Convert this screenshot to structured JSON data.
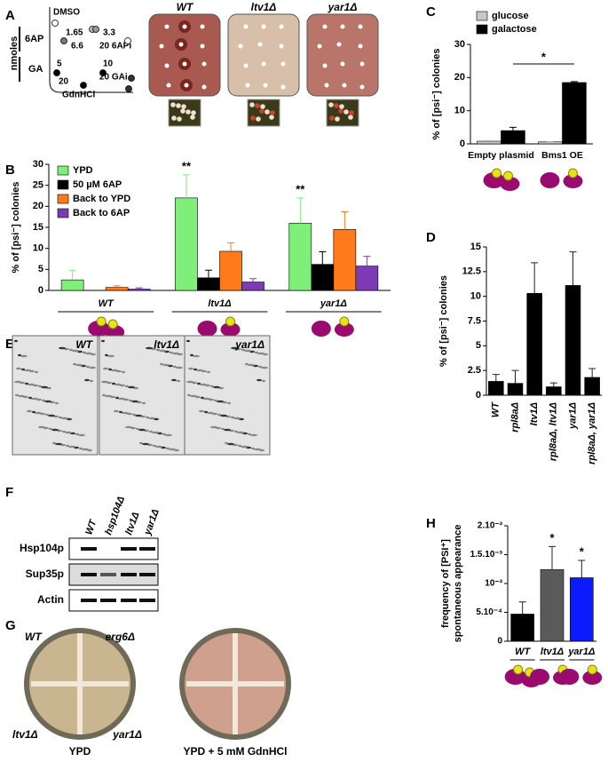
{
  "panel_letters": [
    "A",
    "B",
    "C",
    "D",
    "E",
    "F",
    "G",
    "H"
  ],
  "panel_a": {
    "axis_title": "nmoles",
    "row_labels": [
      "6AP",
      "GA"
    ],
    "spot_labels": [
      "DMSO",
      "1.65",
      "3.3",
      "6.6",
      "20 6APi",
      "5",
      "10",
      "20 GAi",
      "20",
      "GdnHCl"
    ],
    "strains": [
      "WT",
      "ltv1Δ",
      "yar1Δ"
    ]
  },
  "chart_data": [
    {
      "type": "bar",
      "ylabel": "% of [psi⁻] colonies",
      "categories": [
        "WT",
        "ltv1Δ",
        "yar1Δ"
      ],
      "series": [
        {
          "name": "YPD",
          "color": "#7ef07a",
          "values": [
            2.5,
            22,
            16
          ],
          "errors": [
            2.3,
            5.5,
            6
          ]
        },
        {
          "name": "50 µM 6AP",
          "color": "#000000",
          "values": [
            0,
            3,
            6.2
          ],
          "errors": [
            0,
            1.8,
            3
          ]
        },
        {
          "name": "Back to YPD",
          "color": "#ff7a1a",
          "values": [
            0.7,
            9.3,
            14.5
          ],
          "errors": [
            0.4,
            2,
            4.2
          ]
        },
        {
          "name": "Back to 6AP",
          "color": "#7d3cb5",
          "values": [
            0.3,
            2,
            5.8
          ],
          "errors": [
            0.3,
            0.8,
            2.3
          ]
        }
      ],
      "ylim": [
        0,
        30
      ],
      "yticks": [
        0,
        5,
        10,
        15,
        20,
        25,
        30
      ],
      "annotations": [
        "**",
        "**"
      ]
    },
    {
      "type": "bar",
      "ylabel": "% of [psi⁻] colonies",
      "categories": [
        "Empty plasmid",
        "Bms1 OE"
      ],
      "series": [
        {
          "name": "glucose",
          "color": "#c8c8c8",
          "values": [
            0.8,
            0.6
          ],
          "errors": [
            0.2,
            0.1
          ]
        },
        {
          "name": "galactose",
          "color": "#000000",
          "values": [
            4,
            18.5
          ],
          "errors": [
            1,
            0.3
          ]
        }
      ],
      "ylim": [
        0,
        30
      ],
      "yticks": [
        0,
        10,
        20,
        30
      ],
      "annotations": [
        "*"
      ]
    },
    {
      "type": "bar",
      "ylabel": "% of [psi⁻] colonies",
      "categories": [
        "WT",
        "rpl8aΔ",
        "ltv1Δ",
        "rpl8aΔ, ltv1Δ",
        "yar1Δ",
        "rpl8aΔ, yar1Δ"
      ],
      "values": [
        1.4,
        1.2,
        10.3,
        0.85,
        11.1,
        1.8
      ],
      "errors": [
        0.7,
        1.3,
        3.1,
        0.4,
        3.4,
        0.9
      ],
      "color": "#000000",
      "ylim": [
        0,
        15
      ],
      "yticks": [
        0,
        2.5,
        5,
        7.5,
        10,
        12.5,
        15
      ]
    },
    {
      "type": "bar",
      "ylabel": [
        "frequency of [PSI⁺]",
        "spontaneous appearance"
      ],
      "categories": [
        "WT",
        "ltv1Δ",
        "yar1Δ"
      ],
      "values": [
        0.00047,
        0.00124,
        0.0011
      ],
      "errors": [
        0.00021,
        0.0004,
        0.0003
      ],
      "colors": [
        "#000000",
        "#5a5a5a",
        "#0a1cff"
      ],
      "ylim": [
        0,
        0.002
      ],
      "yticks": [
        0,
        {
          "value": 0.0005,
          "label": "5.10⁻⁴"
        },
        {
          "value": 0.001,
          "label": "10⁻³"
        },
        {
          "value": 0.0015,
          "label": "1.5.10⁻³"
        },
        {
          "value": 0.002,
          "label": "2.10⁻³"
        }
      ],
      "annotations": [
        "*",
        "*"
      ]
    }
  ],
  "panel_e": {
    "strains": [
      "WT",
      "ltv1Δ",
      "yar1Δ"
    ]
  },
  "panel_f": {
    "lanes": [
      "WT",
      "hsp104Δ",
      "ltv1Δ",
      "yar1Δ"
    ],
    "rows": [
      "Hsp104p",
      "Sup35p",
      "Actin"
    ]
  },
  "panel_g": {
    "strains": [
      "WT",
      "erg6Δ",
      "ltv1Δ",
      "yar1Δ"
    ],
    "plates": [
      "YPD",
      "YPD + 5 mM GdnHCl"
    ]
  }
}
